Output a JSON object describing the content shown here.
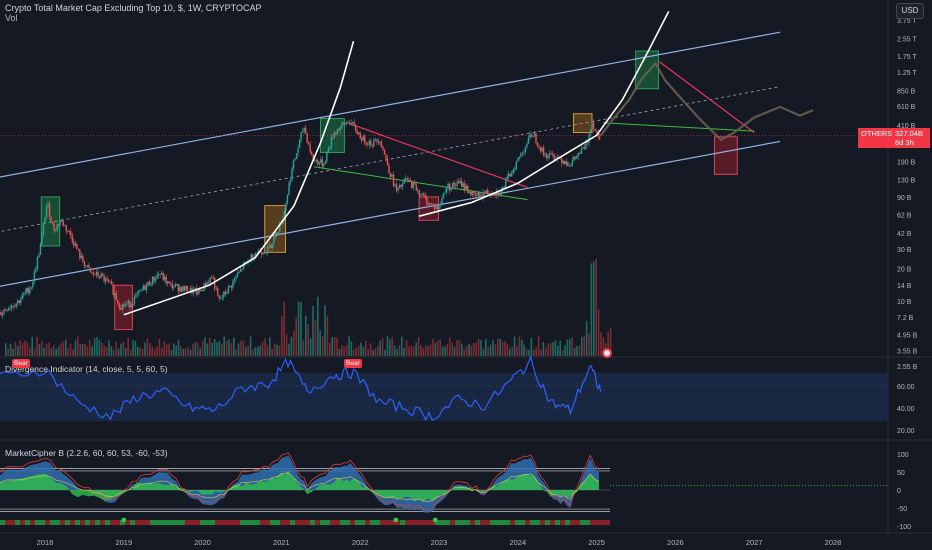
{
  "header": {
    "title": "Crypto Total Market Cap Excluding Top 10, $, 1W, CRYPTOCAP",
    "volume_label": "Vol"
  },
  "currency_button": "USD",
  "last_price": {
    "symbol": "OTHERS",
    "value": "327.04B",
    "countdown": "6d 3h"
  },
  "colors": {
    "background": "#151924",
    "up": "#26a69a",
    "down": "#ef5350",
    "channel": "#8fb2e6",
    "curve": "#ffffff",
    "resistance": "#e8365a",
    "support": "#3fbf3f",
    "indicator": "#2962ff"
  },
  "pane_labels": {
    "divergence": "Divergence Indicator (14, close, 5, 5, 60, 5)",
    "market_cipher": "MarketCipher B (2.2.6, 60, 60, 53, -60, -53)"
  },
  "signal_badges": [
    "Bear",
    "Bear"
  ],
  "chart_data": {
    "type": "candlestick",
    "title": "Crypto Total Market Cap Excluding Top 10, $, 1W, CRYPTOCAP",
    "scale": "log",
    "ylabel": "USD",
    "x_axis_labels": [
      "2018",
      "2019",
      "2020",
      "2021",
      "2022",
      "2023",
      "2024",
      "2025",
      "2026",
      "2027",
      "2028"
    ],
    "price_axis_labels": [
      "3.75 T",
      "2.55 T",
      "1.75 T",
      "1.25 T",
      "850 B",
      "610 B",
      "410 B",
      "190 B",
      "130 B",
      "90 B",
      "62 B",
      "42 B",
      "30 B",
      "20 B",
      "14 B",
      "10 B",
      "7.2 B",
      "4.95 B",
      "3.55 B",
      "2.55 B"
    ],
    "price_axis_values": [
      3750,
      2550,
      1750,
      1250,
      850,
      610,
      410,
      190,
      130,
      90,
      62,
      42,
      30,
      20,
      14,
      10,
      7.2,
      4.95,
      3.55,
      2.55
    ],
    "last_value_label": "327.04B",
    "price_path": [
      [
        "2017-01-01",
        3.3
      ],
      [
        "2017-03-01",
        4.2
      ],
      [
        "2017-05-01",
        6.5
      ],
      [
        "2017-07-01",
        8.5
      ],
      [
        "2017-09-01",
        10
      ],
      [
        "2017-11-01",
        14
      ],
      [
        "2017-12-15",
        35
      ],
      [
        "2018-01-10",
        80
      ],
      [
        "2018-02-10",
        45
      ],
      [
        "2018-03-15",
        55
      ],
      [
        "2018-05-01",
        40
      ],
      [
        "2018-06-15",
        25
      ],
      [
        "2018-08-01",
        18
      ],
      [
        "2018-09-15",
        17
      ],
      [
        "2018-11-01",
        14
      ],
      [
        "2018-12-15",
        9
      ],
      [
        "2019-02-01",
        9.5
      ],
      [
        "2019-04-01",
        13
      ],
      [
        "2019-06-15",
        18
      ],
      [
        "2019-08-01",
        14
      ],
      [
        "2019-10-01",
        13
      ],
      [
        "2019-12-15",
        12
      ],
      [
        "2020-02-15",
        17
      ],
      [
        "2020-03-15",
        10
      ],
      [
        "2020-05-01",
        13
      ],
      [
        "2020-07-01",
        20
      ],
      [
        "2020-09-01",
        28
      ],
      [
        "2020-11-01",
        30
      ],
      [
        "2020-12-15",
        45
      ],
      [
        "2021-01-10",
        60
      ],
      [
        "2021-02-15",
        150
      ],
      [
        "2021-04-15",
        400
      ],
      [
        "2021-05-25",
        200
      ],
      [
        "2021-07-15",
        180
      ],
      [
        "2021-09-01",
        350
      ],
      [
        "2021-11-10",
        450
      ],
      [
        "2022-01-15",
        300
      ],
      [
        "2022-03-01",
        280
      ],
      [
        "2022-04-01",
        310
      ],
      [
        "2022-05-15",
        160
      ],
      [
        "2022-06-20",
        100
      ],
      [
        "2022-08-01",
        130
      ],
      [
        "2022-09-15",
        110
      ],
      [
        "2022-11-10",
        80
      ],
      [
        "2022-12-30",
        70
      ],
      [
        "2023-02-01",
        110
      ],
      [
        "2023-04-15",
        120
      ],
      [
        "2023-06-15",
        90
      ],
      [
        "2023-08-15",
        100
      ],
      [
        "2023-10-15",
        100
      ],
      [
        "2023-12-15",
        170
      ],
      [
        "2024-03-10",
        350
      ],
      [
        "2024-05-01",
        220
      ],
      [
        "2024-07-01",
        210
      ],
      [
        "2024-09-01",
        180
      ],
      [
        "2024-11-15",
        270
      ],
      [
        "2024-12-08",
        450
      ],
      [
        "2025-01-05",
        330
      ],
      [
        "2025-01-20",
        327.04
      ]
    ],
    "projection_path": [
      [
        "2025-01-20",
        330
      ],
      [
        "2025-04-01",
        500
      ],
      [
        "2025-06-01",
        700
      ],
      [
        "2025-08-01",
        1100
      ],
      [
        "2025-10-01",
        1500
      ],
      [
        "2025-11-15",
        1050
      ],
      [
        "2026-02-01",
        700
      ],
      [
        "2026-05-01",
        450
      ],
      [
        "2026-08-01",
        300
      ],
      [
        "2026-10-01",
        350
      ],
      [
        "2027-01-01",
        480
      ],
      [
        "2027-05-01",
        600
      ],
      [
        "2027-08-01",
        500
      ],
      [
        "2027-10-01",
        560
      ]
    ],
    "trendlines": {
      "channel_upper": [
        [
          "2017-01-01",
          120
        ],
        [
          "2027-05-01",
          2900
        ]
      ],
      "channel_lower": [
        [
          "2017-01-01",
          12
        ],
        [
          "2027-05-01",
          290
        ]
      ],
      "channel_mid": [
        [
          "2017-01-01",
          38
        ],
        [
          "2027-05-01",
          920
        ]
      ],
      "parabola_1": [
        [
          "2019-01-01",
          7.5
        ],
        [
          "2020-02-01",
          14
        ],
        [
          "2020-09-01",
          25
        ],
        [
          "2021-03-01",
          75
        ],
        [
          "2021-07-01",
          280
        ],
        [
          "2021-10-01",
          900
        ],
        [
          "2021-12-01",
          2400
        ]
      ],
      "parabola_2": [
        [
          "2022-10-01",
          60
        ],
        [
          "2023-06-01",
          80
        ],
        [
          "2024-01-01",
          120
        ],
        [
          "2024-07-01",
          200
        ],
        [
          "2025-01-01",
          330
        ],
        [
          "2025-05-01",
          700
        ],
        [
          "2025-09-01",
          2000
        ],
        [
          "2025-12-01",
          4500
        ]
      ],
      "resistance_1": [
        [
          "2021-11-15",
          420
        ],
        [
          "2024-02-15",
          110
        ]
      ],
      "support_1": [
        [
          "2021-06-01",
          170
        ],
        [
          "2024-02-15",
          85
        ]
      ],
      "resistance_2": [
        [
          "2025-10-20",
          1550
        ],
        [
          "2027-01-01",
          350
        ]
      ],
      "support_2": [
        [
          "2025-02-01",
          430
        ],
        [
          "2027-01-01",
          360
        ]
      ]
    },
    "highlight_boxes": [
      {
        "color": "green",
        "from": "2017-12-15",
        "to": "2018-03-10",
        "top": 90,
        "bottom": 32
      },
      {
        "color": "red",
        "from": "2018-11-20",
        "to": "2019-02-10",
        "top": 14,
        "bottom": 5.5
      },
      {
        "color": "orange",
        "from": "2020-10-15",
        "to": "2021-01-20",
        "top": 75,
        "bottom": 28
      },
      {
        "color": "green",
        "from": "2021-07-01",
        "to": "2021-10-20",
        "top": 470,
        "bottom": 230
      },
      {
        "color": "red",
        "from": "2022-10-01",
        "to": "2022-12-30",
        "top": 90,
        "bottom": 55
      },
      {
        "color": "orange",
        "from": "2024-09-15",
        "to": "2024-12-10",
        "top": 520,
        "bottom": 350
      },
      {
        "color": "green",
        "from": "2025-07-01",
        "to": "2025-10-15",
        "top": 1950,
        "bottom": 880
      },
      {
        "color": "red",
        "from": "2026-07-01",
        "to": "2026-10-15",
        "top": 320,
        "bottom": 145
      }
    ],
    "divergence_indicator": {
      "axis_labels": [
        "60.00",
        "40.00",
        "20.00"
      ],
      "axis_values": [
        60,
        40,
        20
      ],
      "x": [
        "2017-01-01",
        "2017-06-01",
        "2018-01-01",
        "2018-06-01",
        "2018-11-01",
        "2019-03-01",
        "2019-07-01",
        "2019-11-01",
        "2020-03-01",
        "2020-07-01",
        "2020-11-01",
        "2021-02-01",
        "2021-05-01",
        "2021-09-01",
        "2021-12-01",
        "2022-04-01",
        "2022-08-01",
        "2022-12-01",
        "2023-04-01",
        "2023-08-01",
        "2023-12-01",
        "2024-03-01",
        "2024-06-01",
        "2024-09-01",
        "2024-12-01",
        "2025-01-20"
      ],
      "y": [
        55,
        68,
        75,
        45,
        32,
        50,
        55,
        40,
        38,
        58,
        62,
        82,
        55,
        70,
        72,
        45,
        40,
        32,
        48,
        42,
        65,
        82,
        45,
        38,
        78,
        55
      ]
    },
    "market_cipher_b": {
      "axis_labels": [
        "100",
        "50",
        "0",
        "-50",
        "-100"
      ],
      "axis_values": [
        100,
        50,
        0,
        -50,
        -100
      ],
      "x": [
        "2017-01-01",
        "2017-06-01",
        "2018-01-01",
        "2018-06-01",
        "2018-11-01",
        "2019-03-01",
        "2019-07-01",
        "2019-11-01",
        "2020-03-01",
        "2020-07-01",
        "2020-11-01",
        "2021-02-01",
        "2021-05-01",
        "2021-09-01",
        "2021-12-01",
        "2022-04-01",
        "2022-08-01",
        "2022-12-01",
        "2023-04-01",
        "2023-08-01",
        "2023-12-01",
        "2024-03-01",
        "2024-06-01",
        "2024-09-01",
        "2024-12-01",
        "2025-01-20"
      ],
      "wave": [
        20,
        45,
        80,
        10,
        -40,
        20,
        55,
        -20,
        -45,
        40,
        60,
        95,
        5,
        60,
        70,
        -35,
        -50,
        -60,
        20,
        -15,
        70,
        90,
        -20,
        -45,
        85,
        40
      ],
      "money_flow": [
        10,
        25,
        40,
        -15,
        -25,
        15,
        20,
        -5,
        -10,
        15,
        25,
        50,
        -5,
        25,
        30,
        -20,
        -25,
        -30,
        10,
        -5,
        35,
        45,
        -15,
        -20,
        40,
        20
      ],
      "buy_signals": [
        "2019-01-01",
        "2022-06-15",
        "2022-12-15"
      ]
    }
  }
}
